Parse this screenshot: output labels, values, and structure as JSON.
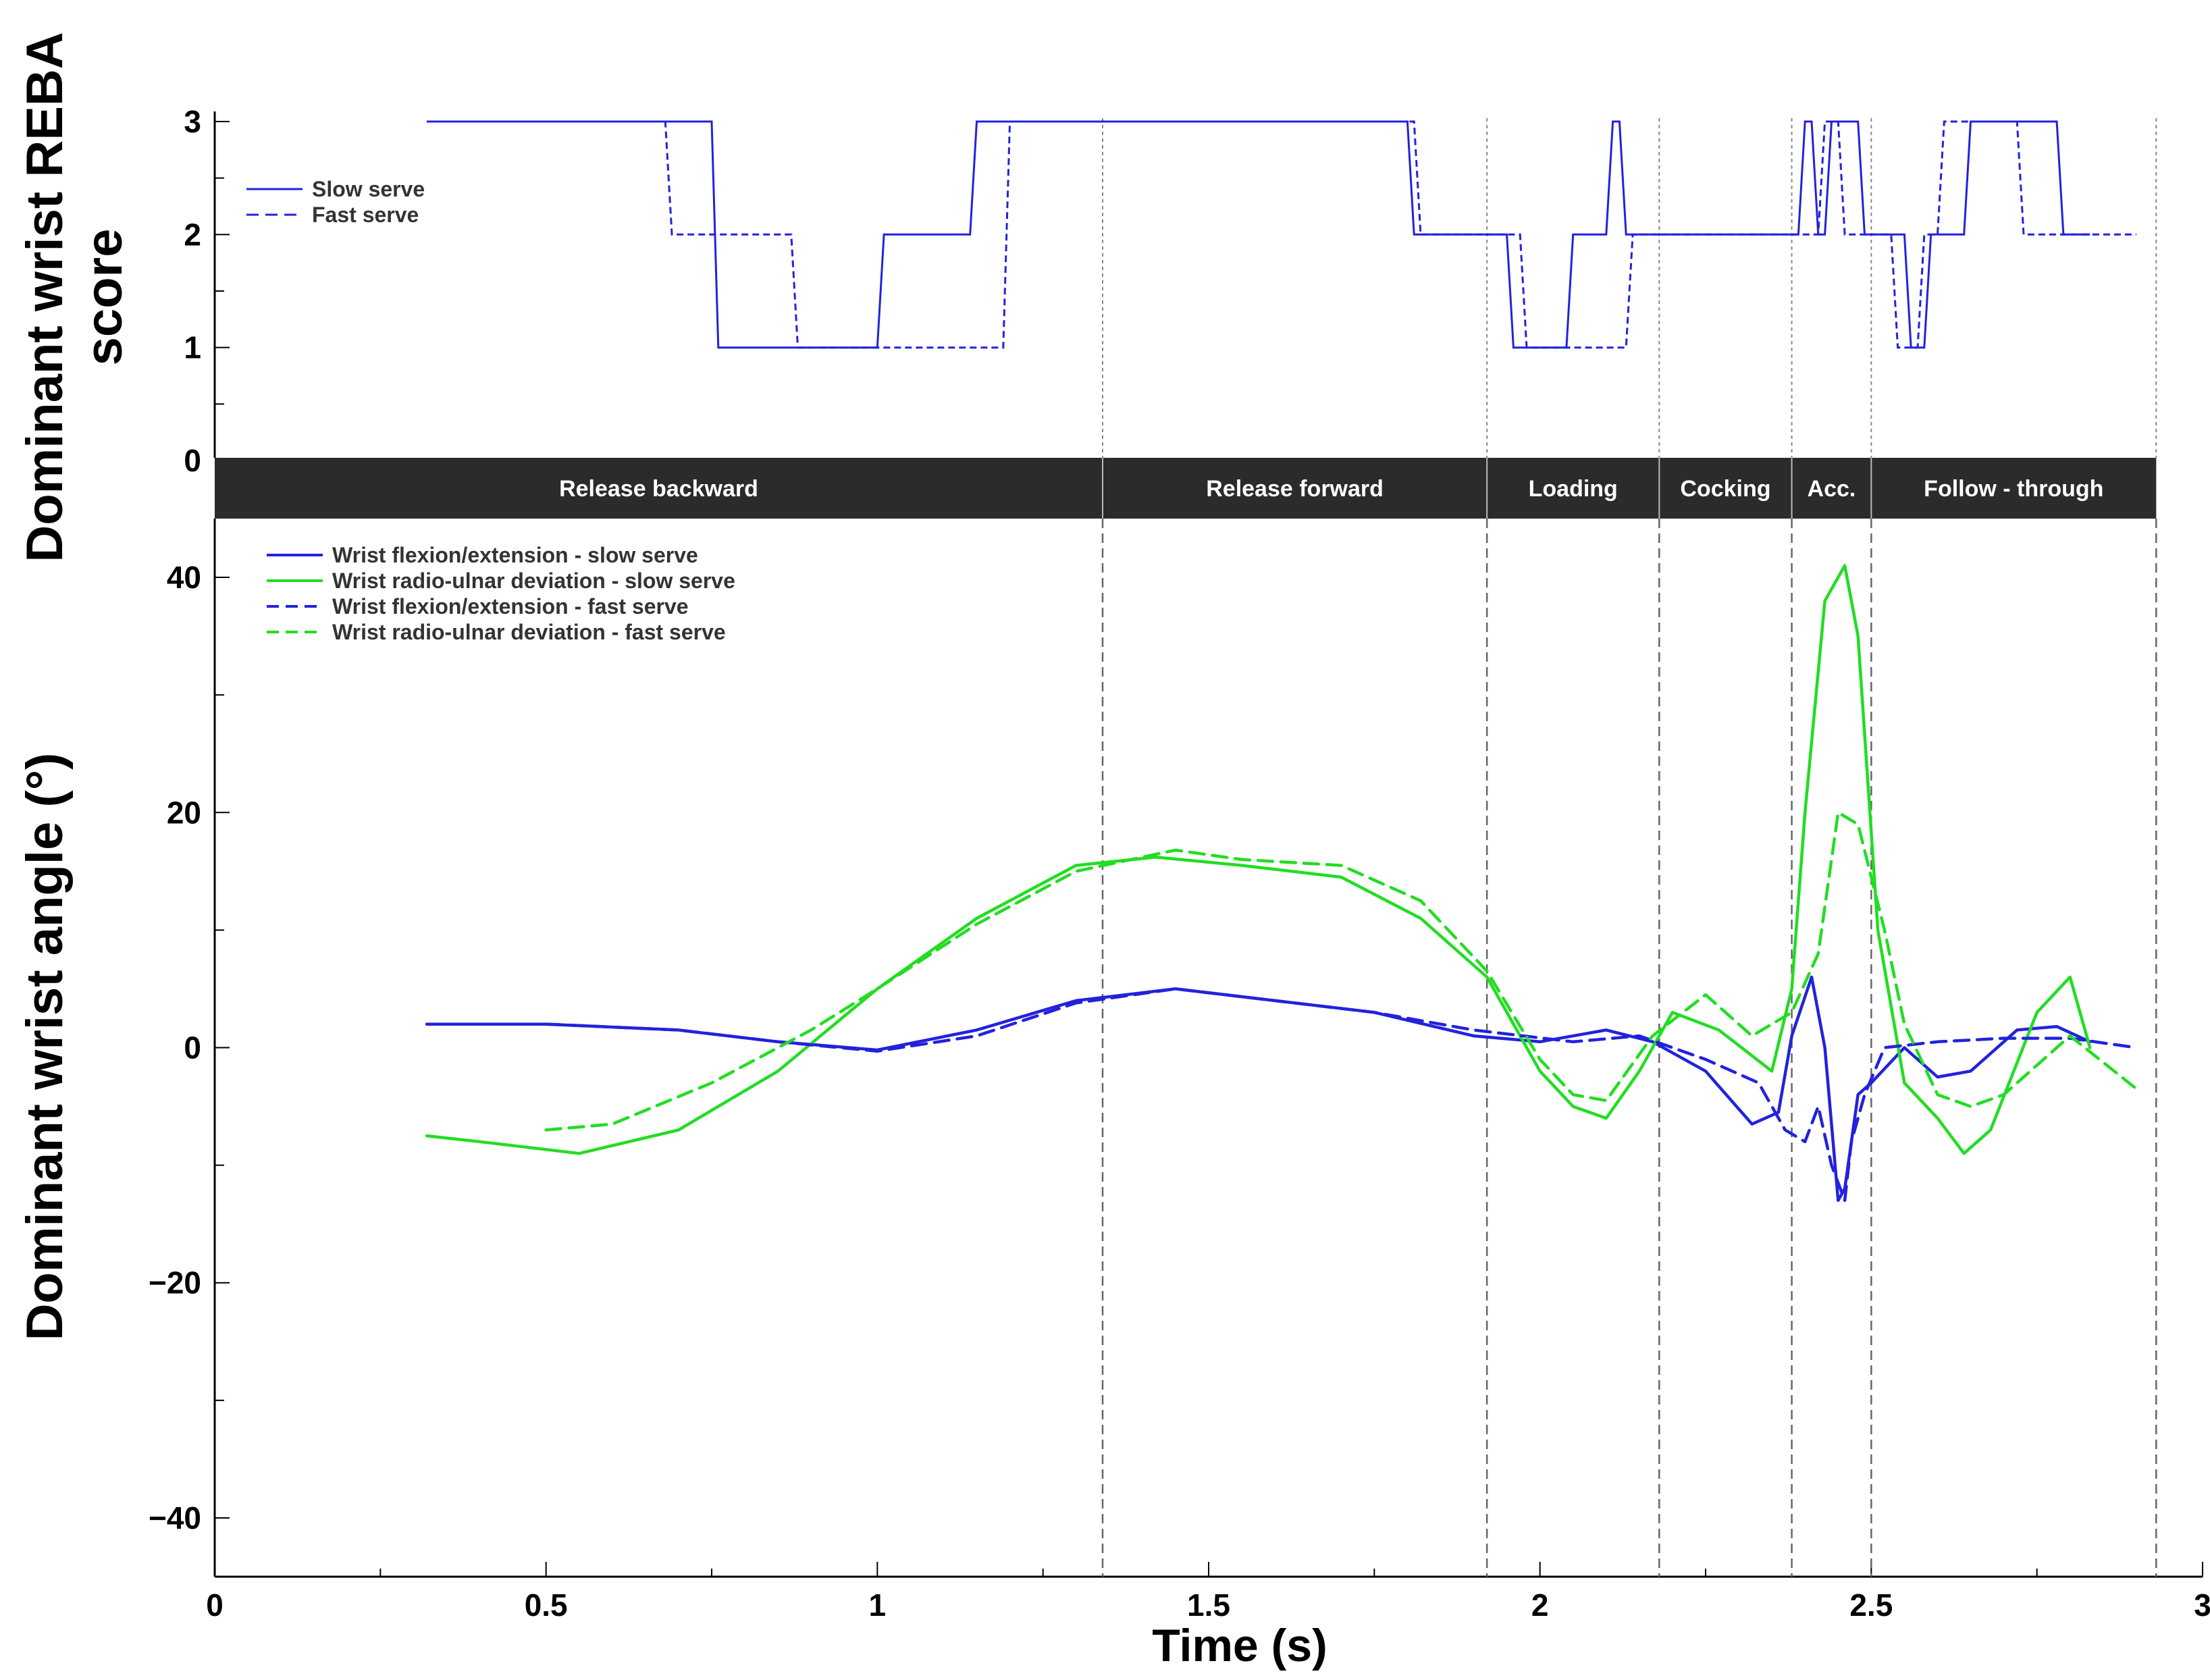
{
  "chart_data": [
    {
      "type": "line",
      "panel": "top",
      "ylabel_line1": "Dominant wrist REBA",
      "ylabel_line2": "score",
      "xlim": [
        0,
        3
      ],
      "ylim": [
        0,
        3
      ],
      "yticks": [
        "0",
        "1",
        "2",
        "3"
      ],
      "legend_position": "top-left",
      "series": [
        {
          "name": "Slow serve",
          "color": "#2222dd",
          "dash": "solid",
          "x": [
            0.32,
            0.75,
            0.76,
            1.0,
            1.01,
            1.14,
            1.15,
            1.8,
            1.81,
            1.95,
            1.96,
            2.04,
            2.05,
            2.1,
            2.11,
            2.12,
            2.13,
            2.39,
            2.4,
            2.41,
            2.42,
            2.43,
            2.44,
            2.48,
            2.49,
            2.55,
            2.56,
            2.58,
            2.59,
            2.64,
            2.65,
            2.78,
            2.79,
            2.83
          ],
          "y": [
            3,
            3,
            1,
            1,
            2,
            2,
            3,
            3,
            2,
            2,
            1,
            1,
            2,
            2,
            3,
            3,
            2,
            2,
            3,
            3,
            2,
            2,
            3,
            3,
            2,
            2,
            1,
            1,
            2,
            2,
            3,
            3,
            2,
            2
          ]
        },
        {
          "name": "Fast serve",
          "color": "#2222dd",
          "dash": "dashed",
          "x": [
            0.32,
            0.68,
            0.69,
            0.87,
            0.88,
            1.19,
            1.2,
            1.81,
            1.82,
            1.97,
            1.98,
            2.13,
            2.14,
            2.42,
            2.43,
            2.45,
            2.46,
            2.53,
            2.54,
            2.57,
            2.58,
            2.6,
            2.61,
            2.72,
            2.73,
            2.88,
            2.9
          ],
          "y": [
            3,
            3,
            2,
            2,
            1,
            1,
            3,
            3,
            2,
            2,
            1,
            1,
            2,
            2,
            3,
            3,
            2,
            2,
            1,
            1,
            2,
            2,
            3,
            3,
            2,
            2,
            2
          ]
        }
      ]
    },
    {
      "type": "line",
      "panel": "bottom",
      "title": "",
      "xlabel": "Time (s)",
      "ylabel": "Dominant wrist angle (°)",
      "xlim": [
        0,
        3
      ],
      "ylim": [
        -45,
        45
      ],
      "xticks": [
        "0",
        "0.5",
        "1",
        "1.5",
        "2",
        "2.5",
        "3"
      ],
      "yticks": [
        "−40",
        "−20",
        "0",
        "20",
        "40"
      ],
      "legend_position": "top-left",
      "series": [
        {
          "name": "Wrist flexion/extension - slow serve",
          "color": "#2222dd",
          "dash": "solid",
          "x": [
            0.32,
            0.5,
            0.7,
            0.85,
            1.0,
            1.15,
            1.3,
            1.45,
            1.6,
            1.75,
            1.9,
            2.0,
            2.1,
            2.17,
            2.25,
            2.32,
            2.36,
            2.38,
            2.41,
            2.43,
            2.45,
            2.46,
            2.48,
            2.5,
            2.55,
            2.6,
            2.65,
            2.72,
            2.78,
            2.83
          ],
          "y": [
            2,
            2,
            1.5,
            0.5,
            -0.2,
            1.5,
            4,
            5,
            4,
            3,
            1,
            0.5,
            1.5,
            0.5,
            -2,
            -6.5,
            -5.5,
            1,
            6,
            0,
            -13,
            -12,
            -4,
            -3,
            0,
            -2.5,
            -2,
            1.5,
            1.8,
            0.5
          ]
        },
        {
          "name": "Wrist radio-ulnar deviation - slow serve",
          "color": "#22dd22",
          "dash": "solid",
          "x": [
            0.32,
            0.4,
            0.55,
            0.7,
            0.85,
            1.0,
            1.15,
            1.3,
            1.42,
            1.55,
            1.7,
            1.82,
            1.92,
            2.0,
            2.05,
            2.1,
            2.15,
            2.2,
            2.27,
            2.35,
            2.38,
            2.4,
            2.43,
            2.46,
            2.48,
            2.51,
            2.55,
            2.6,
            2.64,
            2.68,
            2.75,
            2.8,
            2.83
          ],
          "y": [
            -7.5,
            -8,
            -9,
            -7,
            -2,
            5,
            11,
            15.5,
            16.2,
            15.5,
            14.5,
            11,
            6,
            -2,
            -5,
            -6,
            -2,
            3,
            1.5,
            -2,
            5,
            20,
            38,
            41,
            35,
            10,
            -3,
            -6,
            -9,
            -7,
            3,
            6,
            0
          ]
        },
        {
          "name": "Wrist flexion/extension - fast serve",
          "color": "#2222dd",
          "dash": "dashed",
          "x": [
            0.5,
            0.7,
            0.85,
            1.0,
            1.15,
            1.3,
            1.45,
            1.6,
            1.75,
            1.9,
            2.05,
            2.15,
            2.25,
            2.33,
            2.37,
            2.4,
            2.42,
            2.44,
            2.46,
            2.47,
            2.49,
            2.52,
            2.6,
            2.7,
            2.8,
            2.9
          ],
          "y": [
            2,
            1.5,
            0.5,
            -0.3,
            1,
            3.8,
            5,
            4,
            3,
            1.5,
            0.5,
            1,
            -1,
            -3,
            -7,
            -8,
            -5,
            -10,
            -13,
            -8,
            -4,
            0,
            0.5,
            0.8,
            0.8,
            0
          ]
        },
        {
          "name": "Wrist radio-ulnar deviation - fast serve",
          "color": "#22dd22",
          "dash": "dashed",
          "x": [
            0.5,
            0.6,
            0.75,
            0.9,
            1.0,
            1.15,
            1.3,
            1.45,
            1.55,
            1.7,
            1.82,
            1.92,
            2.0,
            2.05,
            2.1,
            2.17,
            2.25,
            2.32,
            2.38,
            2.42,
            2.45,
            2.48,
            2.52,
            2.55,
            2.6,
            2.65,
            2.7,
            2.8,
            2.9
          ],
          "y": [
            -7,
            -6.5,
            -3,
            1.5,
            5,
            10.5,
            15,
            16.8,
            16,
            15.5,
            12.5,
            6.5,
            -1,
            -4,
            -4.5,
            1,
            4.5,
            1,
            3,
            8,
            20,
            19,
            10,
            2,
            -4,
            -5,
            -4,
            1,
            -3.5
          ]
        }
      ]
    }
  ],
  "phases": [
    {
      "label": "Release backward",
      "start": 0,
      "end": 1.34
    },
    {
      "label": "Release forward",
      "start": 1.34,
      "end": 1.92
    },
    {
      "label": "Loading",
      "start": 1.92,
      "end": 2.18
    },
    {
      "label": "Cocking",
      "start": 2.18,
      "end": 2.38
    },
    {
      "label": "Acc.",
      "start": 2.38,
      "end": 2.5
    },
    {
      "label": "Follow - through",
      "start": 2.5,
      "end": 2.93
    }
  ]
}
